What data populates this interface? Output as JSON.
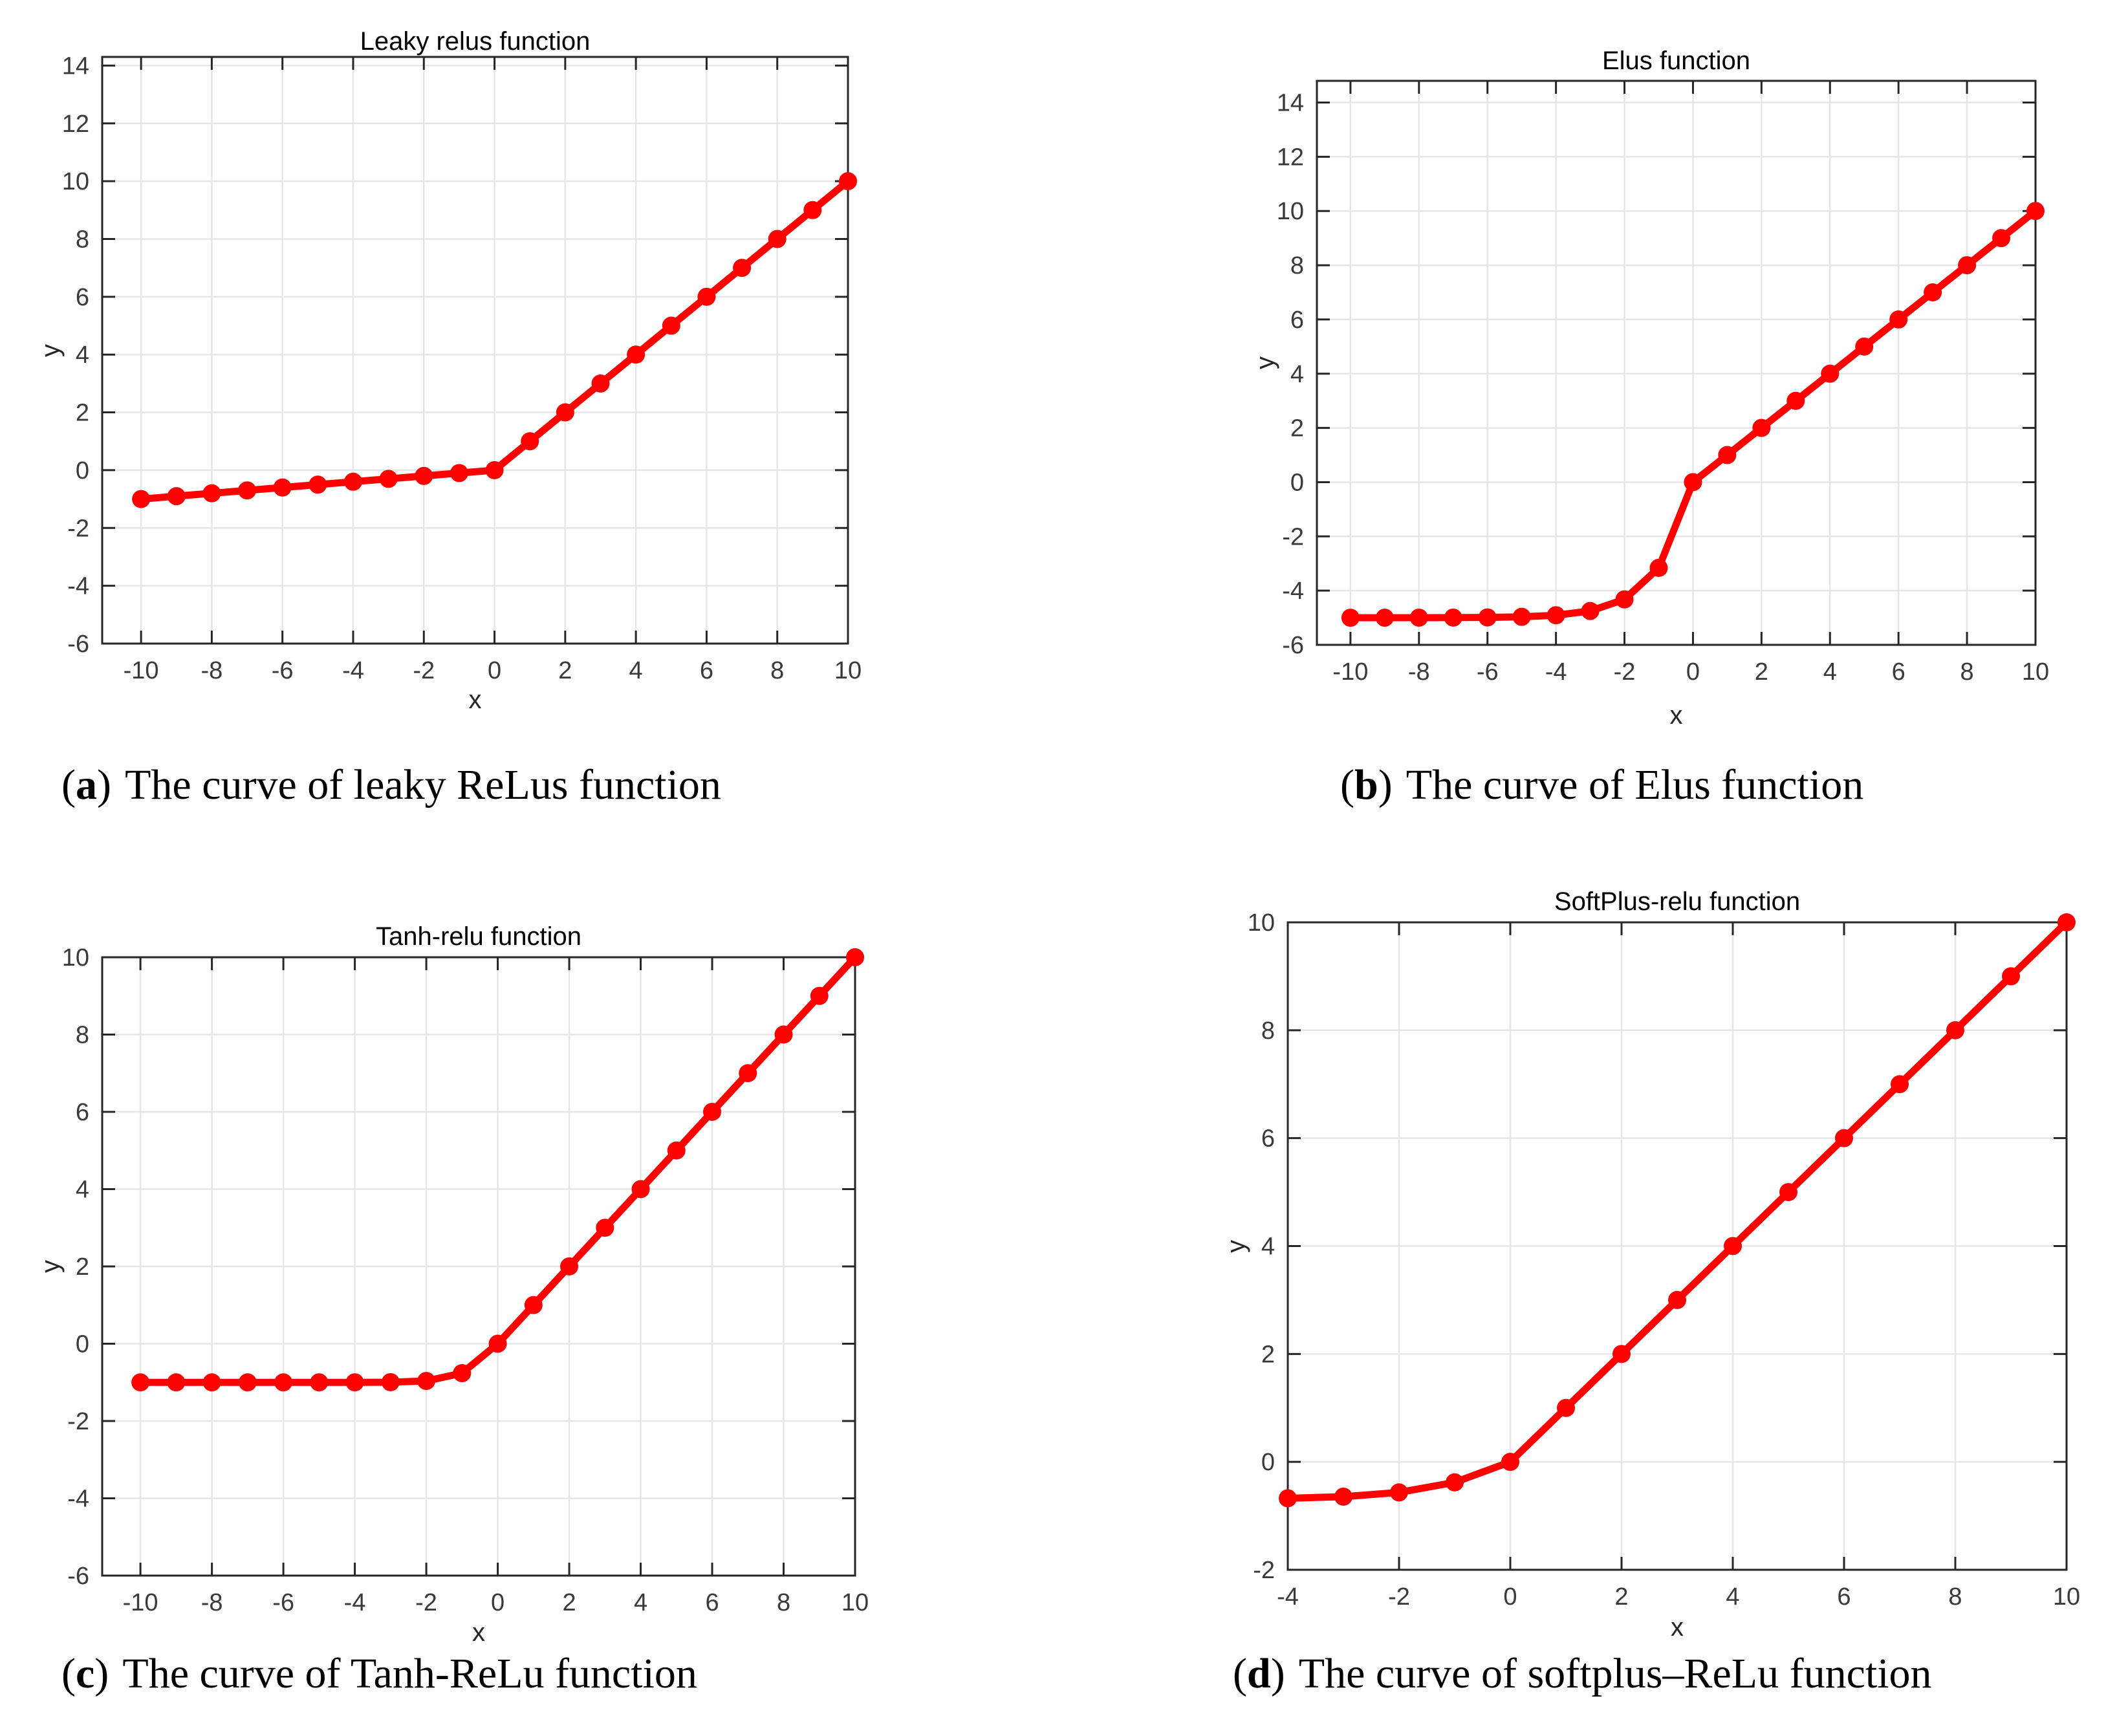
{
  "figure": {
    "background": "#ffffff",
    "accent_color": "#ff0000",
    "grid_color": "#e6e6e6",
    "axis_color": "#262626",
    "label_color": "#3a3a3a"
  },
  "chart_data": [
    {
      "id": "leaky-relus",
      "type": "line",
      "title": "Leaky relus function",
      "xlabel": "x",
      "ylabel": "y",
      "caption_letter": "a",
      "caption_text": "The curve of leaky ReLus function",
      "x": [
        -10,
        -9,
        -8,
        -7,
        -6,
        -5,
        -4,
        -3,
        -2,
        -1,
        0,
        1,
        2,
        3,
        4,
        5,
        6,
        7,
        8,
        9,
        10
      ],
      "y": [
        -1.0,
        -0.9,
        -0.8,
        -0.7,
        -0.6,
        -0.5,
        -0.4,
        -0.3,
        -0.2,
        -0.1,
        0,
        1,
        2,
        3,
        4,
        5,
        6,
        7,
        8,
        9,
        10
      ],
      "xlim": [
        -11.1,
        10
      ],
      "ylim": [
        -6,
        14.3
      ],
      "xticks": [
        -10,
        -8,
        -6,
        -4,
        -2,
        0,
        2,
        4,
        6,
        8,
        10
      ],
      "yticks": [
        -6,
        -4,
        -2,
        0,
        2,
        4,
        6,
        8,
        10,
        12,
        14
      ],
      "grid": true,
      "legend": "none",
      "line_color": "#ff0000",
      "marker": "circle"
    },
    {
      "id": "elus",
      "type": "line",
      "title": "Elus function",
      "xlabel": "x",
      "ylabel": "y",
      "caption_letter": "b",
      "caption_text": "The curve of Elus function",
      "x": [
        -10,
        -9,
        -8,
        -7,
        -6,
        -5,
        -4,
        -3,
        -2,
        -1,
        0,
        1,
        2,
        3,
        4,
        5,
        6,
        7,
        8,
        9,
        10
      ],
      "y": [
        -5.0,
        -4.999,
        -4.998,
        -4.995,
        -4.988,
        -4.966,
        -4.908,
        -4.751,
        -4.323,
        -3.161,
        0,
        1,
        2,
        3,
        4,
        5,
        6,
        7,
        8,
        9,
        10
      ],
      "xlim": [
        -10.98,
        10
      ],
      "ylim": [
        -6,
        14.8
      ],
      "xticks": [
        -10,
        -8,
        -6,
        -4,
        -2,
        0,
        2,
        4,
        6,
        8,
        10
      ],
      "yticks": [
        -6,
        -4,
        -2,
        0,
        2,
        4,
        6,
        8,
        10,
        12,
        14
      ],
      "grid": true,
      "legend": "none",
      "line_color": "#ff0000",
      "marker": "circle"
    },
    {
      "id": "tanh-relu",
      "type": "line",
      "title": "Tanh-relu function",
      "xlabel": "x",
      "ylabel": "y",
      "caption_letter": "c",
      "caption_text": "The curve of Tanh-ReLu function",
      "x": [
        -10,
        -9,
        -8,
        -7,
        -6,
        -5,
        -4,
        -3,
        -2,
        -1,
        0,
        1,
        2,
        3,
        4,
        5,
        6,
        7,
        8,
        9,
        10
      ],
      "y": [
        -1.0,
        -1.0,
        -1.0,
        -1.0,
        -1.0,
        -0.9999,
        -0.9993,
        -0.995,
        -0.964,
        -0.762,
        0,
        1,
        2,
        3,
        4,
        5,
        6,
        7,
        8,
        9,
        10
      ],
      "xlim": [
        -11.07,
        10
      ],
      "ylim": [
        -6,
        10
      ],
      "xticks": [
        -10,
        -8,
        -6,
        -4,
        -2,
        0,
        2,
        4,
        6,
        8,
        10
      ],
      "yticks": [
        -6,
        -4,
        -2,
        0,
        2,
        4,
        6,
        8,
        10
      ],
      "grid": true,
      "legend": "none",
      "line_color": "#ff0000",
      "marker": "circle"
    },
    {
      "id": "softplus-relu",
      "type": "line",
      "title": "SoftPlus-relu function",
      "xlabel": "x",
      "ylabel": "y",
      "caption_letter": "d",
      "caption_text": "The curve of softplus–ReLu function",
      "x": [
        -4,
        -3,
        -2,
        -1,
        0,
        1,
        2,
        3,
        4,
        5,
        6,
        7,
        8,
        9,
        10
      ],
      "y": [
        -0.675,
        -0.645,
        -0.566,
        -0.38,
        0,
        1,
        2,
        3,
        4,
        5,
        6,
        7,
        8,
        9,
        10
      ],
      "xlim": [
        -4,
        10
      ],
      "ylim": [
        -2,
        10
      ],
      "xticks": [
        -4,
        -2,
        0,
        2,
        4,
        6,
        8,
        10
      ],
      "yticks": [
        -2,
        0,
        2,
        4,
        6,
        8,
        10
      ],
      "grid": true,
      "legend": "none",
      "line_color": "#ff0000",
      "marker": "circle"
    }
  ]
}
